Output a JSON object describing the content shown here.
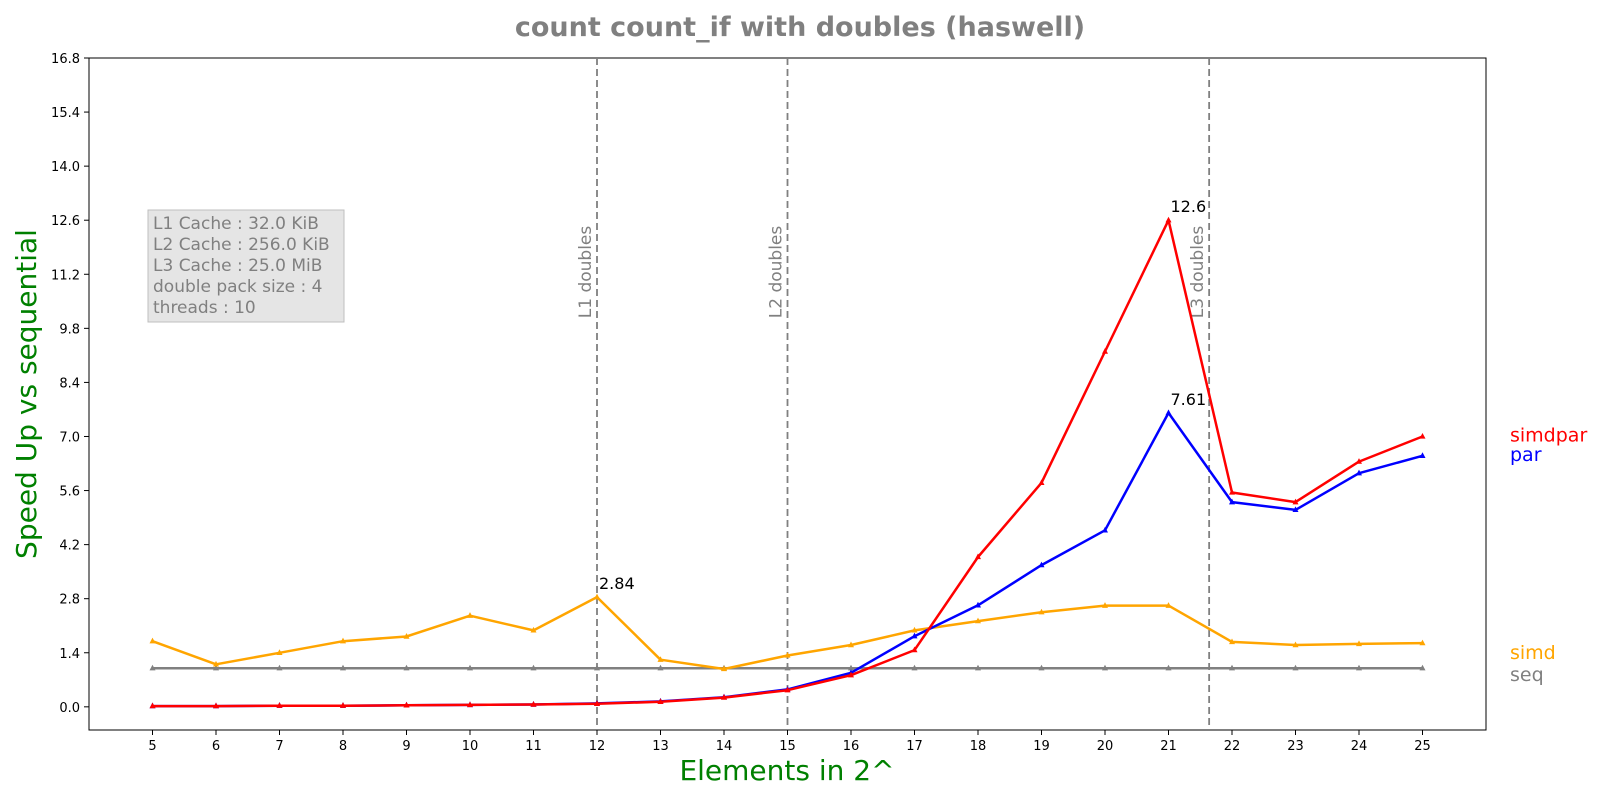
{
  "chart_data": {
    "type": "line",
    "title": "count count_if with doubles  (haswell)",
    "xlabel": "Elements in 2^",
    "ylabel": "Speed Up vs sequential",
    "x": [
      5,
      6,
      7,
      8,
      9,
      10,
      11,
      12,
      13,
      14,
      15,
      16,
      17,
      18,
      19,
      20,
      21,
      22,
      23,
      24,
      25
    ],
    "xlim": [
      4,
      26
    ],
    "ylim": [
      -0.6,
      16.8
    ],
    "yticks": [
      "0.0",
      "1.4",
      "2.8",
      "4.2",
      "5.6",
      "7.0",
      "8.4",
      "9.8",
      "11.2",
      "12.6",
      "14.0",
      "15.4",
      "16.8"
    ],
    "grid": false,
    "series": [
      {
        "name": "simdpar",
        "color": "#ff0000",
        "values": [
          0.02,
          0.02,
          0.03,
          0.03,
          0.04,
          0.05,
          0.06,
          0.08,
          0.13,
          0.24,
          0.43,
          0.82,
          1.47,
          3.88,
          5.8,
          9.2,
          12.6,
          5.55,
          5.3,
          6.35,
          7.0
        ]
      },
      {
        "name": "par",
        "color": "#0000ff",
        "values": [
          0.02,
          0.02,
          0.03,
          0.03,
          0.04,
          0.05,
          0.06,
          0.09,
          0.14,
          0.25,
          0.45,
          0.88,
          1.83,
          2.63,
          3.67,
          4.57,
          7.61,
          5.3,
          5.1,
          6.05,
          6.5
        ]
      },
      {
        "name": "simd",
        "color": "#ffa500",
        "values": [
          1.7,
          1.1,
          1.4,
          1.7,
          1.82,
          2.36,
          1.98,
          2.84,
          1.22,
          0.98,
          1.33,
          1.6,
          1.98,
          2.22,
          2.45,
          2.62,
          2.62,
          1.68,
          1.6,
          1.63,
          1.65
        ]
      },
      {
        "name": "seq",
        "color": "#808080",
        "values": [
          1,
          1,
          1,
          1,
          1,
          1,
          1,
          1,
          1,
          1,
          1,
          1,
          1,
          1,
          1,
          1,
          1,
          1,
          1,
          1,
          1
        ]
      }
    ],
    "vlines": [
      {
        "x": 12,
        "label": "L1 doubles"
      },
      {
        "x": 15,
        "label": "L2 doubles"
      },
      {
        "x": 21.64,
        "label": "L3 doubles"
      }
    ],
    "annotations": [
      {
        "x": 12,
        "y": 2.84,
        "text": "2.84"
      },
      {
        "x": 21,
        "y": 12.6,
        "text": "12.6"
      },
      {
        "x": 21,
        "y": 7.61,
        "text": "7.61"
      }
    ],
    "info_box": [
      "L1 Cache : 32.0 KiB",
      "L2 Cache : 256.0 KiB",
      "L3 Cache : 25.0 MiB",
      "double pack size : 4",
      "threads : 10"
    ],
    "legend_placement": "right"
  }
}
